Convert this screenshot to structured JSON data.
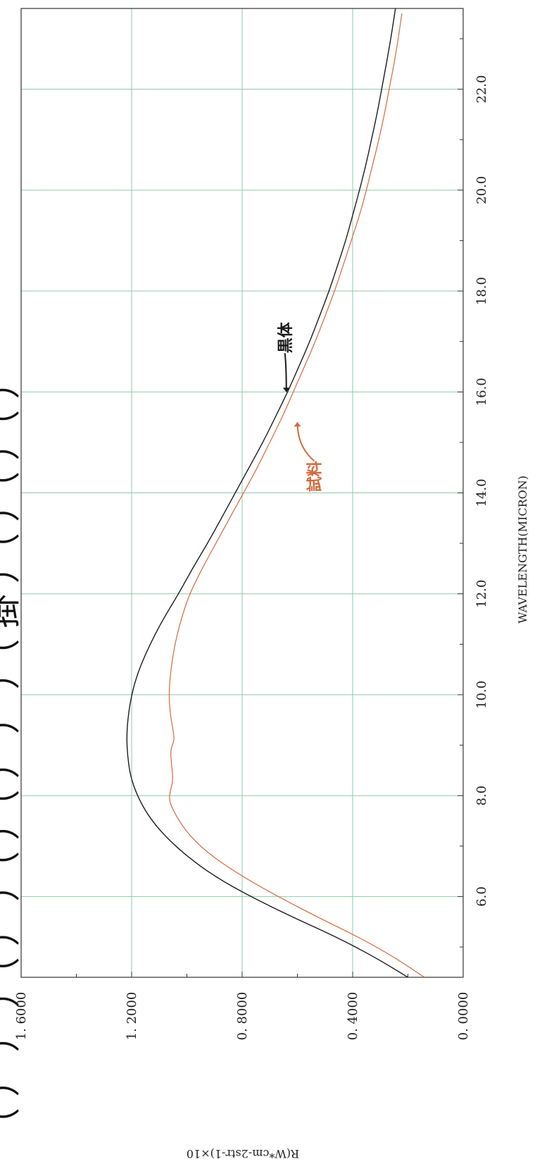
{
  "chart_data": {
    "type": "line",
    "orientation": "rotated-90-clockwise",
    "xlabel": "WAVELENGTH(MICRON)",
    "ylabel": "R(W*cm-2str-1)×10",
    "xlim": [
      4.4,
      23.6
    ],
    "ylim": [
      0.0,
      1.6
    ],
    "x_ticks": [
      "6.0",
      "8.0",
      "10.0",
      "12.0",
      "14.0",
      "16.0",
      "18.0",
      "20.0",
      "22.0"
    ],
    "y_ticks": [
      "0. 0000",
      "0. 4000",
      "0. 8000",
      "1. 2000",
      "1. 6000"
    ],
    "grid": true,
    "title_fragment": "（ ） ） ）（ ） ）（ ）（ ） ） ）（ 掛 ）（ ）（ ）（ ）",
    "series": [
      {
        "name": "黒体",
        "color": "#1a1a1a",
        "x": [
          4.4,
          4.8,
          5.2,
          5.6,
          6.0,
          6.4,
          6.8,
          7.2,
          7.6,
          8.0,
          8.4,
          8.8,
          9.2,
          9.6,
          10.0,
          10.4,
          10.8,
          11.2,
          11.6,
          12.0,
          12.5,
          13.0,
          13.5,
          14.0,
          14.5,
          15.0,
          15.5,
          16.0,
          16.5,
          17.0,
          17.5,
          18.0,
          18.5,
          19.0,
          19.5,
          20.0,
          20.5,
          21.0,
          21.5,
          22.0,
          22.5,
          23.0,
          23.6
        ],
        "y": [
          0.2,
          0.32,
          0.46,
          0.62,
          0.77,
          0.9,
          1.0,
          1.08,
          1.14,
          1.18,
          1.205,
          1.215,
          1.218,
          1.212,
          1.2,
          1.18,
          1.15,
          1.115,
          1.075,
          1.03,
          0.98,
          0.925,
          0.875,
          0.825,
          0.775,
          0.725,
          0.68,
          0.635,
          0.595,
          0.555,
          0.52,
          0.485,
          0.455,
          0.425,
          0.4,
          0.375,
          0.352,
          0.332,
          0.312,
          0.295,
          0.278,
          0.262,
          0.245
        ]
      },
      {
        "name": "試料",
        "color": "#d4693a",
        "x": [
          4.4,
          4.8,
          5.2,
          5.6,
          6.0,
          6.4,
          6.8,
          7.2,
          7.6,
          7.9,
          8.1,
          8.3,
          8.6,
          8.9,
          9.1,
          9.3,
          9.6,
          10.0,
          10.4,
          10.8,
          11.2,
          11.6,
          12.0,
          12.5,
          13.0,
          13.5,
          14.0,
          14.5,
          15.0,
          15.5,
          16.0,
          16.5,
          17.0,
          17.5,
          18.0,
          18.5,
          19.0,
          19.5,
          20.0,
          20.5,
          21.0,
          21.5,
          22.0,
          22.5,
          23.0,
          23.5
        ],
        "y": [
          0.14,
          0.25,
          0.38,
          0.53,
          0.67,
          0.8,
          0.91,
          0.99,
          1.04,
          1.065,
          1.06,
          1.05,
          1.055,
          1.06,
          1.045,
          1.05,
          1.06,
          1.065,
          1.06,
          1.05,
          1.035,
          1.015,
          0.99,
          0.945,
          0.895,
          0.845,
          0.795,
          0.745,
          0.7,
          0.655,
          0.615,
          0.575,
          0.535,
          0.5,
          0.465,
          0.435,
          0.405,
          0.375,
          0.35,
          0.328,
          0.305,
          0.285,
          0.268,
          0.25,
          0.235,
          0.222
        ]
      }
    ],
    "annotations": [
      {
        "text": "黒体",
        "series": "黒体",
        "x": 16.0,
        "y": 0.64
      },
      {
        "text": "試料",
        "series": "試料",
        "x": 15.4,
        "y": 0.6
      }
    ]
  }
}
